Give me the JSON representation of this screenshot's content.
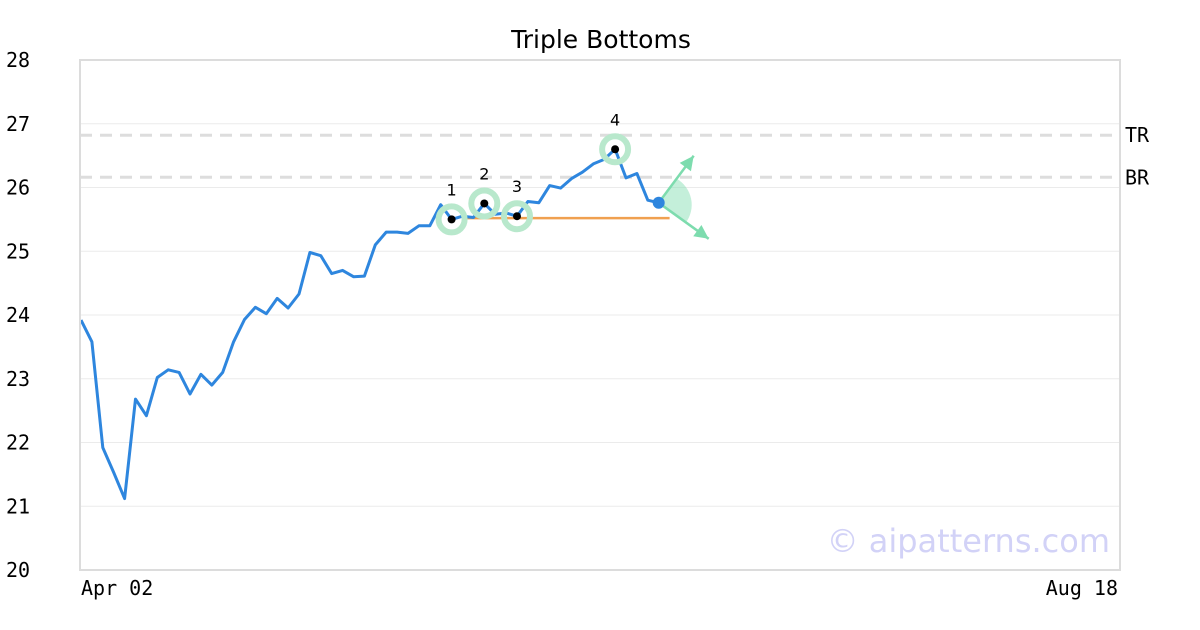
{
  "chart_data": {
    "type": "line",
    "title": "Triple Bottoms",
    "ylim": [
      20,
      28
    ],
    "yticks": [
      "20",
      "21",
      "22",
      "23",
      "24",
      "25",
      "26",
      "27",
      "28"
    ],
    "xtick_labels": [
      "Apr 02",
      "Aug 18"
    ],
    "grid": true,
    "colors": {
      "line": "#2e86de",
      "neckline": "#f0a050",
      "marker_halo": "#b8e8cc",
      "arrow": "#7ddcae",
      "level_line": "#dddddd",
      "current_point": "#2e86de",
      "watermark": "#d2d2f7"
    },
    "series": [
      {
        "values": [
          23.92,
          23.58,
          21.92,
          21.53,
          21.12,
          22.68,
          22.42,
          23.02,
          23.14,
          23.1,
          22.76,
          23.07,
          22.9,
          23.1,
          23.58,
          23.93,
          24.12,
          24.02,
          24.26,
          24.11,
          24.33,
          24.98,
          24.93,
          24.65,
          24.7,
          24.6,
          24.61,
          25.1,
          25.3,
          25.3,
          25.28,
          25.4,
          25.4,
          25.73,
          25.5,
          25.55,
          25.53,
          25.75,
          25.58,
          25.6,
          25.55,
          25.78,
          25.76,
          26.03,
          25.99,
          26.14,
          26.24,
          26.37,
          26.44,
          26.6,
          26.15,
          26.22,
          25.8,
          25.76
        ]
      }
    ],
    "pattern_points": [
      {
        "label": "1",
        "index": 34,
        "value": 25.5
      },
      {
        "label": "2",
        "index": 37,
        "value": 25.75
      },
      {
        "label": "3",
        "index": 40,
        "value": 25.55
      },
      {
        "label": "4",
        "index": 49,
        "value": 26.6
      }
    ],
    "neckline": {
      "value": 25.52,
      "from_index": 35,
      "to_index": 54
    },
    "levels": [
      {
        "label": "TR",
        "value": 26.82
      },
      {
        "label": "BR",
        "value": 26.16
      }
    ],
    "current_point": {
      "index": 53,
      "value": 25.76
    },
    "watermark": "© aipatterns.com"
  }
}
